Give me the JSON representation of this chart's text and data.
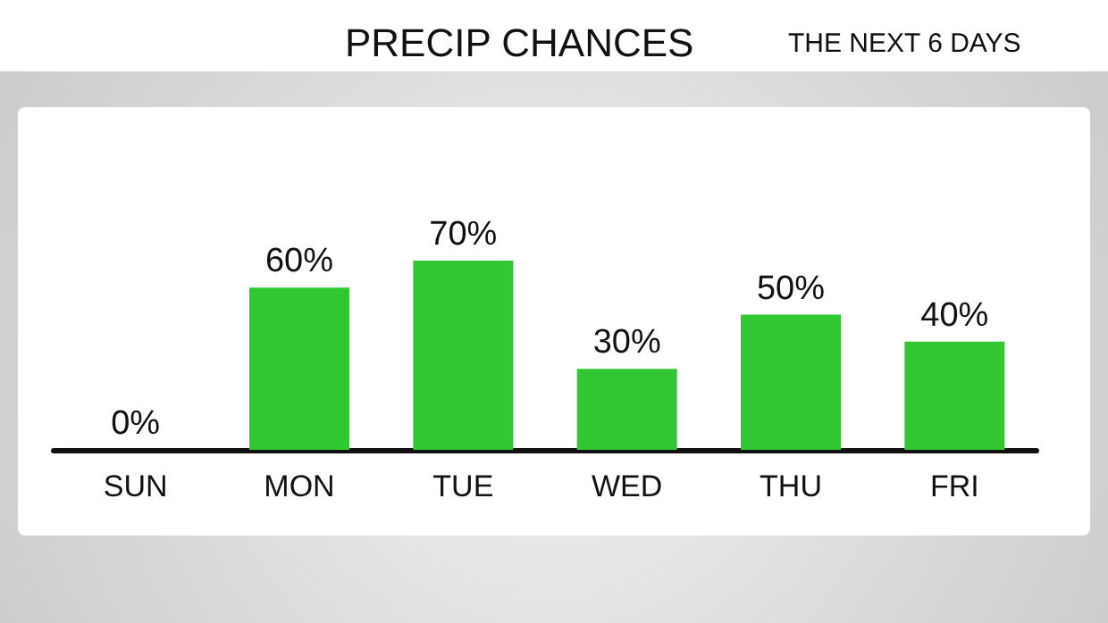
{
  "chart_data": {
    "type": "bar",
    "title": "PRECIP CHANCES",
    "subtitle": "THE NEXT 6 DAYS",
    "categories": [
      "SUN",
      "MON",
      "TUE",
      "WED",
      "THU",
      "FRI"
    ],
    "values": [
      0,
      60,
      70,
      30,
      50,
      40
    ],
    "value_labels": [
      "0%",
      "60%",
      "70%",
      "30%",
      "50%",
      "40%"
    ],
    "color": "#33c633"
  }
}
